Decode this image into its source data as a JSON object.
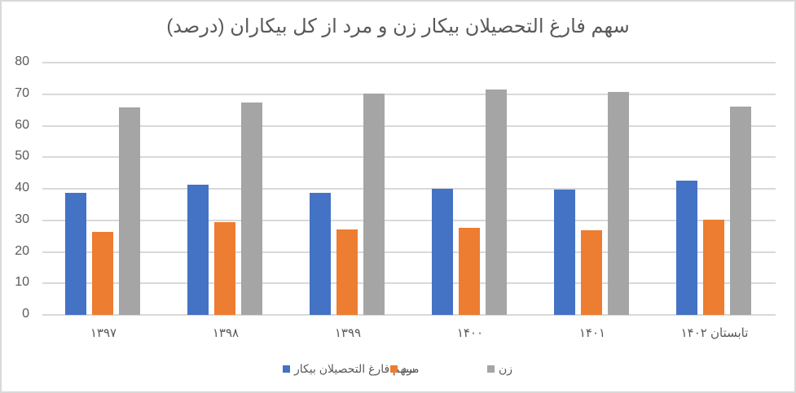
{
  "chart_data": {
    "type": "bar",
    "title": "سهم فارغ التحصیلان بیکار زن و مرد از کل بیکاران (درصد)",
    "xlabel": "",
    "ylabel": "",
    "ylim": [
      0,
      80
    ],
    "yticks": [
      "0",
      "10",
      "20",
      "30",
      "40",
      "50",
      "60",
      "70",
      "80"
    ],
    "grid": true,
    "legend_position": "bottom",
    "categories": [
      "۱۳۹۷",
      "۱۳۹۸",
      "۱۳۹۹",
      "۱۴۰۰",
      "۱۴۰۱",
      "تابستان ۱۴۰۲"
    ],
    "series": [
      {
        "name": "سهم فارغ التحصیلان بیکار",
        "color": "#4472c4",
        "values": [
          38.6,
          41.4,
          38.8,
          40.1,
          39.8,
          42.6
        ]
      },
      {
        "name": "مرد",
        "color": "#ed7d31",
        "values": [
          26.2,
          29.5,
          27.0,
          27.6,
          26.9,
          30.2
        ]
      },
      {
        "name": "زن",
        "color": "#a5a5a5",
        "values": [
          65.9,
          67.3,
          70.3,
          71.6,
          70.8,
          66.1
        ]
      }
    ]
  },
  "colors": {
    "text": "#595959",
    "grid": "#d9d9d9",
    "border": "#d9d9d9"
  }
}
